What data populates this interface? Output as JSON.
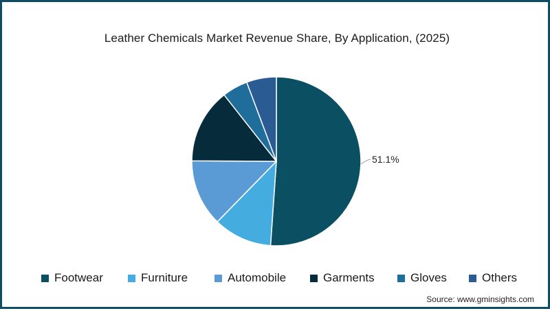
{
  "chart_data": {
    "type": "pie",
    "title": "Leather Chemicals Market Revenue Share, By Application, (2025)",
    "categories": [
      "Footwear",
      "Furniture",
      "Automobile",
      "Garments",
      "Gloves",
      "Others"
    ],
    "values": [
      51.1,
      11.2,
      12.8,
      14.3,
      4.9,
      5.7
    ],
    "unit": "%",
    "colors": [
      "#0b4f63",
      "#45ace0",
      "#5b9bd5",
      "#062c3b",
      "#1f6d9b",
      "#2a5b93"
    ],
    "start_angle_deg": 0,
    "direction": "clockwise",
    "data_labels": [
      {
        "category": "Footwear",
        "text": "51.1%"
      }
    ],
    "legend_position": "bottom"
  },
  "title": "Leather Chemicals Market Revenue Share, By Application, (2025)",
  "legend": [
    {
      "label": "Footwear",
      "color": "#0b4f63"
    },
    {
      "label": "Furniture",
      "color": "#45ace0"
    },
    {
      "label": "Automobile",
      "color": "#5b9bd5"
    },
    {
      "label": "Garments",
      "color": "#062c3b"
    },
    {
      "label": "Gloves",
      "color": "#1f6d9b"
    },
    {
      "label": "Others",
      "color": "#2a5b93"
    }
  ],
  "label_footwear": "51.1%",
  "source": "Source: www.gminsights.com",
  "frame_color": "#0d4c63"
}
